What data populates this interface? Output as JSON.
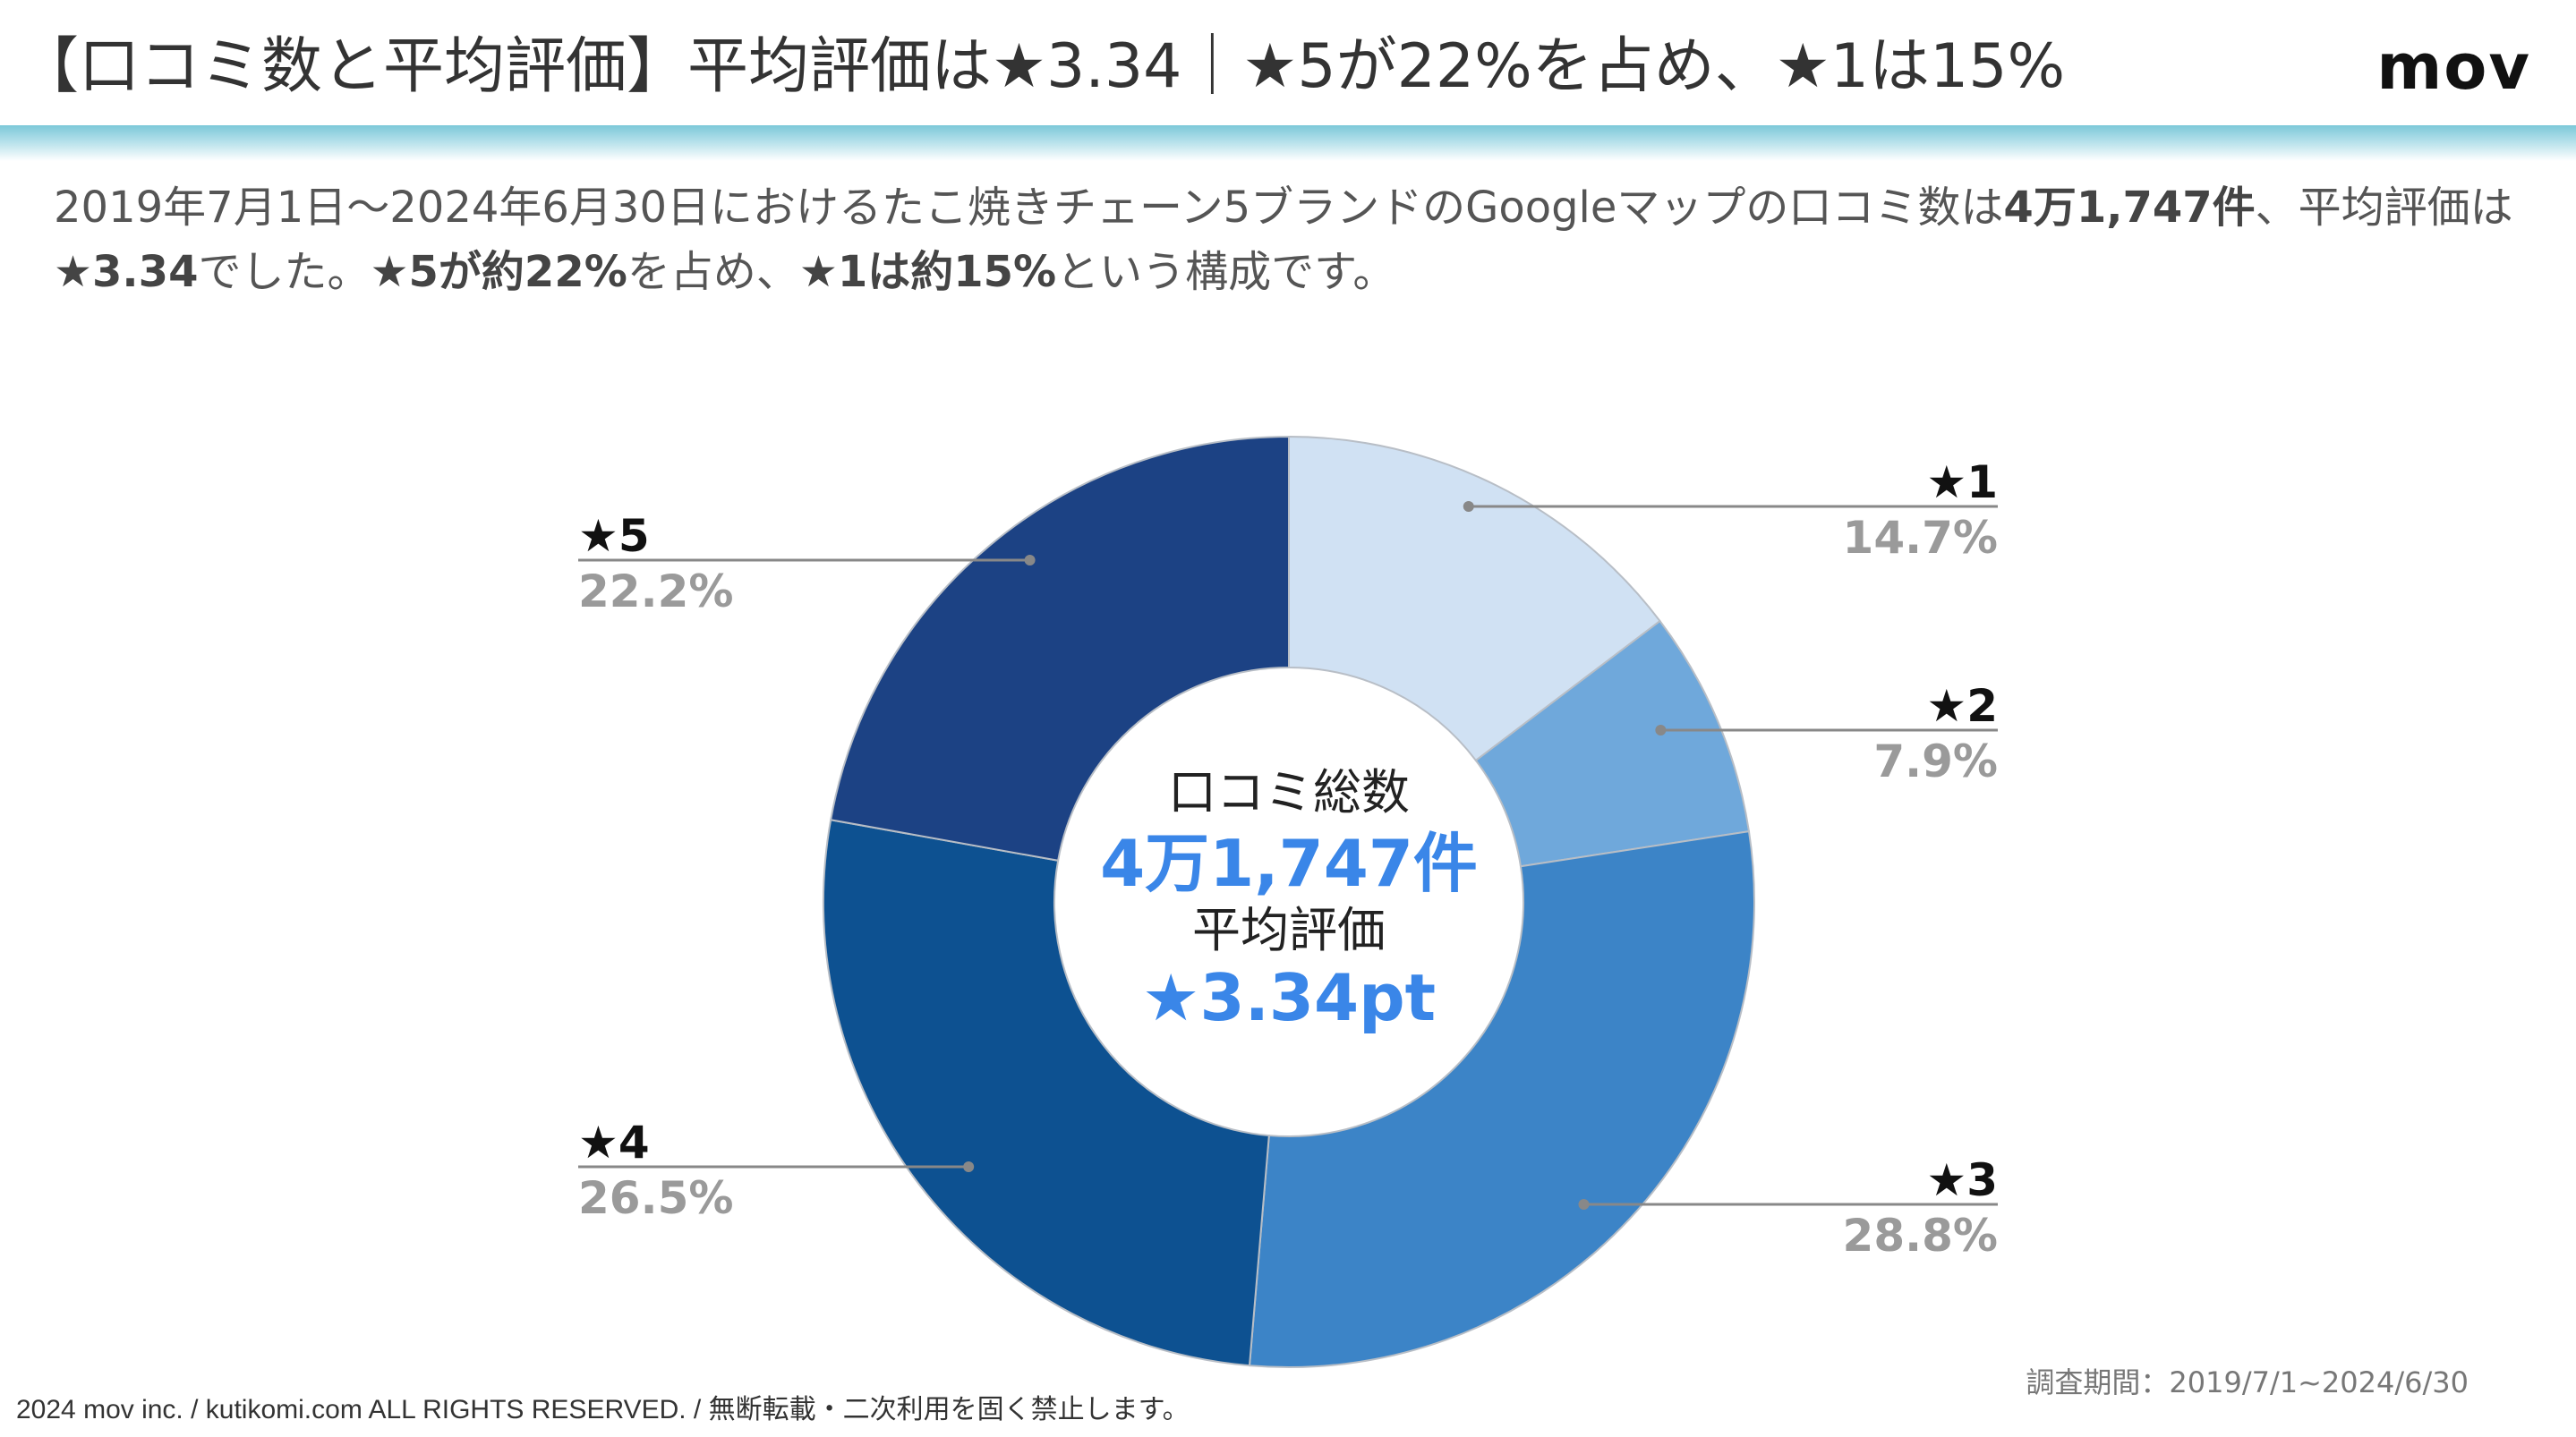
{
  "header": {
    "title": "【口コミ数と平均評価】平均評価は★3.34｜★5が22%を占め、★1は15%",
    "logo": "mov"
  },
  "summary": {
    "part1": "2019年7月1日〜2024年6月30日におけるたこ焼きチェーン5ブランドのGoogleマップの口コミ数は",
    "count": "4万1,747件",
    "part2": "、平均評価は",
    "avg": "★3.34",
    "part3": "でした。",
    "five": "★5が約22%",
    "part4": "を占め、",
    "one": "★1は約15%",
    "part5": "という構成です。"
  },
  "chart_data": {
    "type": "pie",
    "donut": true,
    "categories": [
      "★1",
      "★2",
      "★3",
      "★4",
      "★5"
    ],
    "values": [
      14.7,
      7.9,
      28.8,
      26.5,
      22.2
    ],
    "value_labels": [
      "14.7%",
      "7.9%",
      "28.8%",
      "26.5%",
      "22.2%"
    ],
    "colors": [
      "#d0e1f3",
      "#6fa8db",
      "#3c84c7",
      "#0d5191",
      "#1c4284"
    ],
    "center": {
      "line1": "口コミ総数",
      "line2": "4万1,747件",
      "line3": "平均評価",
      "line4": "★3.34pt"
    },
    "center_accent": "#3a86e8"
  },
  "footer": {
    "copyright": "2024 mov inc. / kutikomi.com ALL RIGHTS RESERVED. / 無断転載・二次利用を固く禁止します。",
    "period": "調査期間：2019/7/1~2024/6/30"
  }
}
